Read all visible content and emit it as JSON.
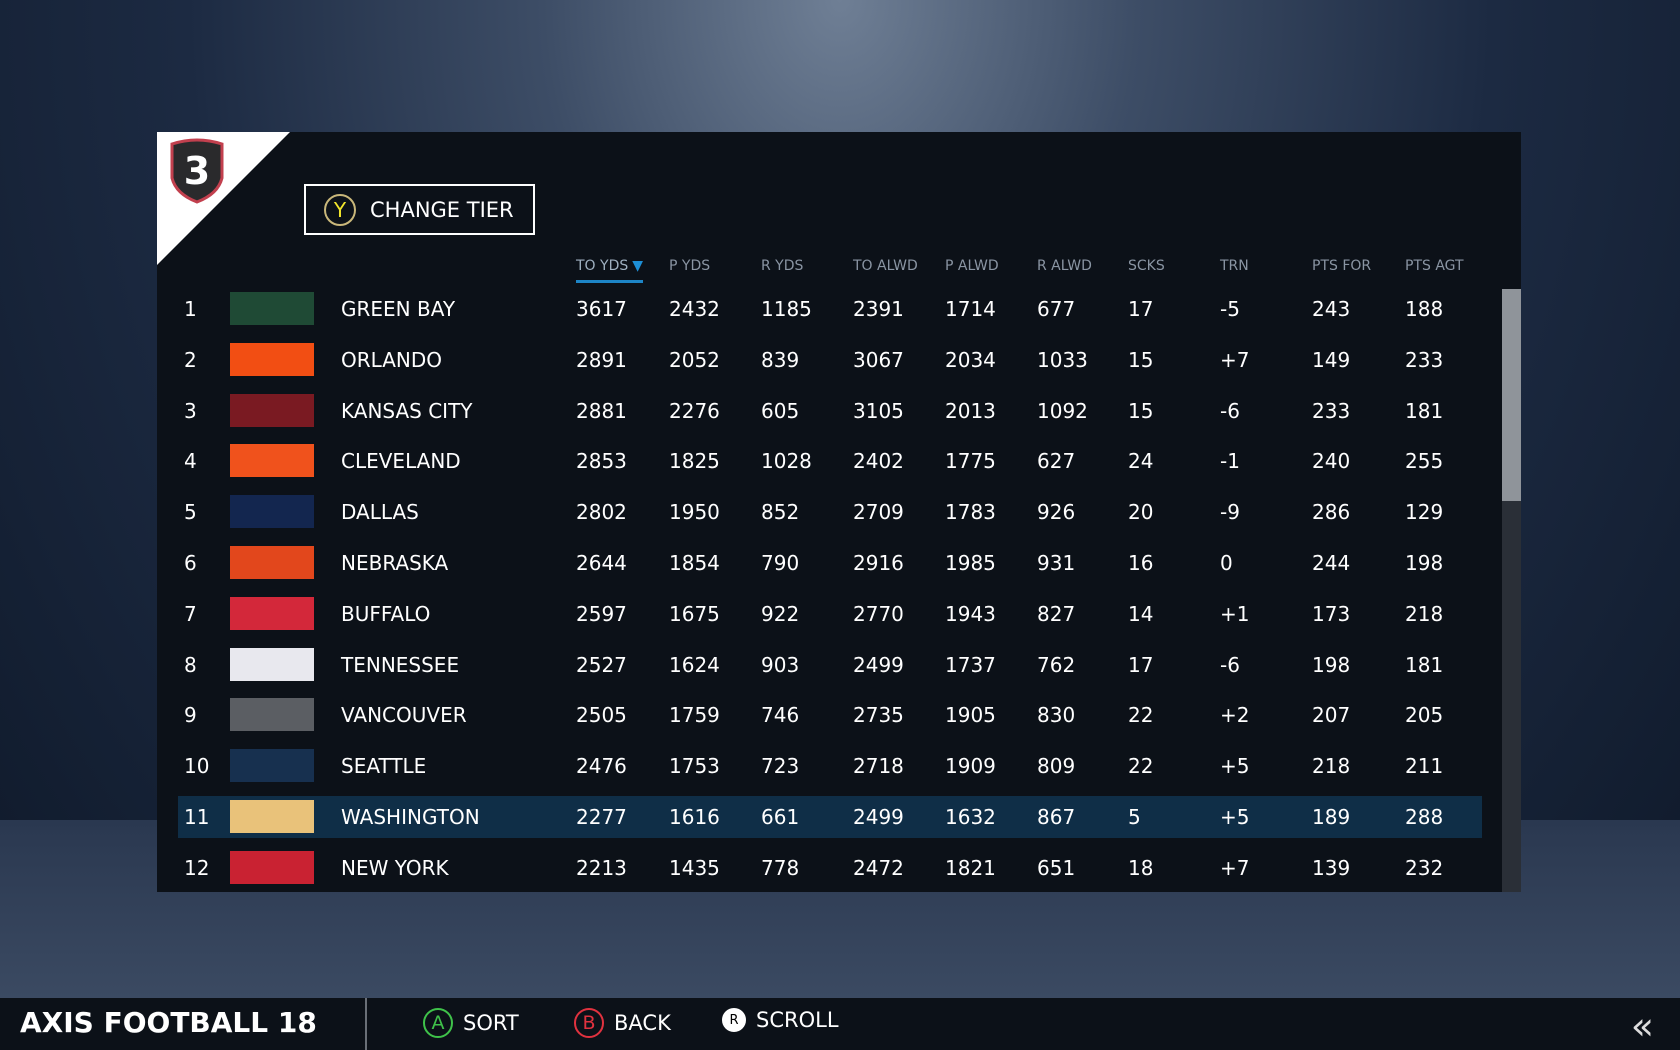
{
  "tier": {
    "number": "3",
    "change_label": "CHANGE TIER",
    "button_glyph": "Y"
  },
  "columns": [
    "TO YDS",
    "P YDS",
    "R YDS",
    "TO ALWD",
    "P ALWD",
    "R ALWD",
    "SCKS",
    "TRN",
    "PTS FOR",
    "PTS AGT"
  ],
  "sort": {
    "column": "TO YDS",
    "direction": "descending",
    "indicator": "▼"
  },
  "rows": [
    {
      "rank": "1",
      "team": "GREEN BAY",
      "logo": "#1f4a35",
      "v": [
        "3617",
        "2432",
        "1185",
        "2391",
        "1714",
        "677",
        "17",
        "-5",
        "243",
        "188"
      ]
    },
    {
      "rank": "2",
      "team": "ORLANDO",
      "logo": "#f24e13",
      "v": [
        "2891",
        "2052",
        "839",
        "3067",
        "2034",
        "1033",
        "15",
        "+7",
        "149",
        "233"
      ]
    },
    {
      "rank": "3",
      "team": "KANSAS CITY",
      "logo": "#7a1a22",
      "v": [
        "2881",
        "2276",
        "605",
        "3105",
        "2013",
        "1092",
        "15",
        "-6",
        "233",
        "181"
      ]
    },
    {
      "rank": "4",
      "team": "CLEVELAND",
      "logo": "#f0521c",
      "v": [
        "2853",
        "1825",
        "1028",
        "2402",
        "1775",
        "627",
        "24",
        "-1",
        "240",
        "255"
      ]
    },
    {
      "rank": "5",
      "team": "DALLAS",
      "logo": "#13264f",
      "v": [
        "2802",
        "1950",
        "852",
        "2709",
        "1783",
        "926",
        "20",
        "-9",
        "286",
        "129"
      ]
    },
    {
      "rank": "6",
      "team": "NEBRASKA",
      "logo": "#e2471c",
      "v": [
        "2644",
        "1854",
        "790",
        "2916",
        "1985",
        "931",
        "16",
        "0",
        "244",
        "198"
      ]
    },
    {
      "rank": "7",
      "team": "BUFFALO",
      "logo": "#d3283a",
      "v": [
        "2597",
        "1675",
        "922",
        "2770",
        "1943",
        "827",
        "14",
        "+1",
        "173",
        "218"
      ]
    },
    {
      "rank": "8",
      "team": "TENNESSEE",
      "logo": "#e8e8ee",
      "v": [
        "2527",
        "1624",
        "903",
        "2499",
        "1737",
        "762",
        "17",
        "-6",
        "198",
        "181"
      ]
    },
    {
      "rank": "9",
      "team": "VANCOUVER",
      "logo": "#5b5e63",
      "v": [
        "2505",
        "1759",
        "746",
        "2735",
        "1905",
        "830",
        "22",
        "+2",
        "207",
        "205"
      ]
    },
    {
      "rank": "10",
      "team": "SEATTLE",
      "logo": "#17304f",
      "v": [
        "2476",
        "1753",
        "723",
        "2718",
        "1909",
        "809",
        "22",
        "+5",
        "218",
        "211"
      ]
    },
    {
      "rank": "11",
      "team": "WASHINGTON",
      "logo": "#e9c27a",
      "v": [
        "2277",
        "1616",
        "661",
        "2499",
        "1632",
        "867",
        "5",
        "+5",
        "189",
        "288"
      ]
    },
    {
      "rank": "12",
      "team": "NEW YORK",
      "logo": "#c92232",
      "v": [
        "2213",
        "1435",
        "778",
        "2472",
        "1821",
        "651",
        "18",
        "+7",
        "139",
        "232"
      ]
    }
  ],
  "highlighted_rank": "11",
  "scroll_position": 0,
  "footer": {
    "brand": "AXIS FOOTBALL 18",
    "hints": [
      {
        "glyph": "A",
        "label": "SORT",
        "color": "#3fc24a"
      },
      {
        "glyph": "B",
        "label": "BACK",
        "color": "#e0323f"
      },
      {
        "glyph": "R",
        "label": "SCROLL"
      }
    ],
    "back_icon": "«"
  },
  "colors": {
    "accent": "#1d85c6",
    "highlight": "#0f2e47",
    "panel": "#0c1118"
  }
}
